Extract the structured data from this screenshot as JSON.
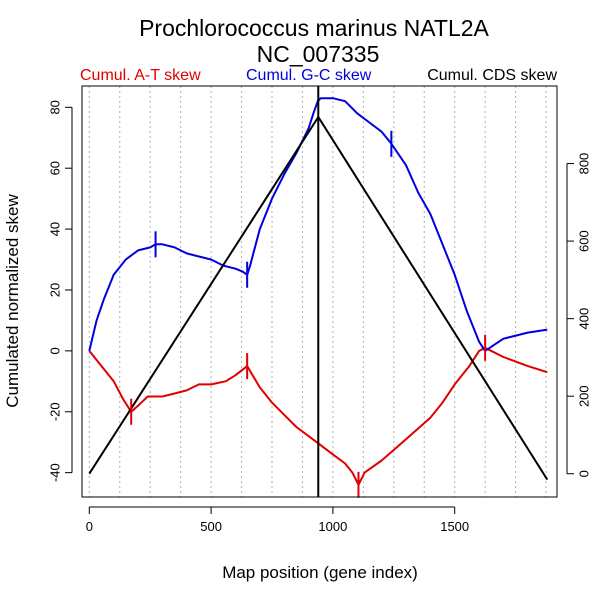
{
  "chart_data": {
    "type": "line",
    "title": "Prochlorococcus marinus NATL2A",
    "subtitle": "NC_007335",
    "xlabel": "Map position (gene index)",
    "ylabel": "Cumulated normalized skew",
    "xlim": [
      -30,
      1920
    ],
    "ylim": [
      -48,
      87
    ],
    "y2lim": [
      -60,
      1000
    ],
    "xticks": [
      0,
      500,
      1000,
      1500
    ],
    "yticks": [
      -40,
      -20,
      0,
      20,
      40,
      60,
      80
    ],
    "y2ticks": [
      0,
      200,
      400,
      600,
      800
    ],
    "grid_x": [
      0,
      125,
      250,
      375,
      500,
      625,
      750,
      875,
      1000,
      1125,
      1250,
      1375,
      1500,
      1625,
      1750,
      1875
    ],
    "grid": "vertical dotted",
    "legend": [
      {
        "label": "Cumul. A-T skew",
        "color": "#e00000"
      },
      {
        "label": "Cumul. G-C skew",
        "color": "#0000e0"
      },
      {
        "label": "Cumul. CDS skew",
        "color": "#000000"
      }
    ],
    "series": [
      {
        "name": "Cumul. A-T skew",
        "color": "#e00000",
        "axis": "left",
        "x": [
          0,
          50,
          100,
          140,
          172,
          200,
          240,
          300,
          350,
          400,
          450,
          500,
          560,
          600,
          648,
          700,
          750,
          800,
          850,
          900,
          950,
          1000,
          1050,
          1080,
          1105,
          1130,
          1200,
          1300,
          1400,
          1450,
          1500,
          1560,
          1600,
          1625,
          1700,
          1800,
          1880
        ],
        "y": [
          0,
          -5,
          -10,
          -16,
          -20,
          -18,
          -15,
          -15,
          -14,
          -13,
          -11,
          -11,
          -10,
          -8,
          -5,
          -12,
          -17,
          -21,
          -25,
          -28,
          -31,
          -34,
          -37,
          -40,
          -44,
          -40,
          -36,
          -29,
          -22,
          -17,
          -11,
          -5,
          0,
          1,
          -2,
          -5,
          -7
        ]
      },
      {
        "name": "Cumul. G-C skew",
        "color": "#0000e0",
        "axis": "left",
        "x": [
          0,
          30,
          60,
          100,
          150,
          200,
          250,
          272,
          300,
          350,
          400,
          450,
          500,
          550,
          600,
          630,
          648,
          660,
          700,
          750,
          800,
          850,
          900,
          920,
          938,
          950,
          1000,
          1050,
          1100,
          1150,
          1200,
          1240,
          1300,
          1350,
          1400,
          1450,
          1500,
          1550,
          1600,
          1625,
          1700,
          1800,
          1880
        ],
        "y": [
          0,
          10,
          17,
          25,
          30,
          33,
          34,
          35,
          35,
          34,
          32,
          31,
          30,
          28,
          27,
          26,
          25,
          28,
          40,
          50,
          58,
          65,
          73,
          78,
          82,
          83,
          83,
          82,
          78,
          75,
          72,
          68,
          61,
          52,
          45,
          35,
          25,
          13,
          3,
          0,
          4,
          6,
          7
        ]
      },
      {
        "name": "Cumul. CDS skew",
        "color": "#000000",
        "axis": "right",
        "x": [
          0,
          940,
          1880
        ],
        "y": [
          0,
          920,
          -15
        ]
      }
    ],
    "origin_line_x": 940,
    "markers": [
      {
        "series": "Cumul. A-T skew",
        "x": 172,
        "y": -20
      },
      {
        "series": "Cumul. A-T skew",
        "x": 648,
        "y": -5
      },
      {
        "series": "Cumul. A-T skew",
        "x": 1105,
        "y": -44
      },
      {
        "series": "Cumul. A-T skew",
        "x": 1625,
        "y": 1
      },
      {
        "series": "Cumul. G-C skew",
        "x": 272,
        "y": 35
      },
      {
        "series": "Cumul. G-C skew",
        "x": 648,
        "y": 25
      },
      {
        "series": "Cumul. G-C skew",
        "x": 1240,
        "y": 68
      }
    ]
  }
}
